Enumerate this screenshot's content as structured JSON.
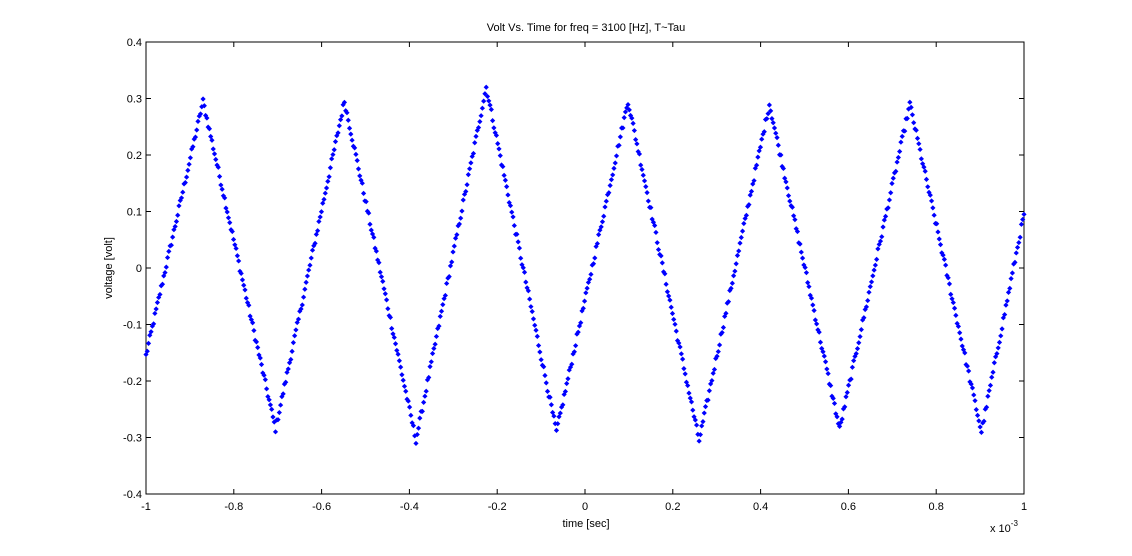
{
  "chart_data": {
    "type": "scatter",
    "title": "Volt Vs. Time for freq = 3100 [Hz], T~Tau",
    "xlabel": "time [sec]",
    "ylabel": "voltage [volt]",
    "x_multiplier_label": {
      "base": "x 10",
      "exponent": "-3"
    },
    "xlim": [
      -1,
      1
    ],
    "ylim": [
      -0.4,
      0.4
    ],
    "xticks": [
      -1,
      -0.8,
      -0.6,
      -0.4,
      -0.2,
      0,
      0.2,
      0.4,
      0.6,
      0.8,
      1
    ],
    "xtick_labels": [
      "-1",
      "-0.8",
      "-0.6",
      "-0.4",
      "-0.2",
      "0",
      "0.2",
      "0.4",
      "0.6",
      "0.8",
      "1"
    ],
    "yticks": [
      -0.4,
      -0.3,
      -0.2,
      -0.1,
      0,
      0.1,
      0.2,
      0.3,
      0.4
    ],
    "ytick_labels": [
      "-0.4",
      "-0.3",
      "-0.2",
      "-0.1",
      "0",
      "0.1",
      "0.2",
      "0.3",
      "0.4"
    ],
    "grid": false,
    "marker_color": "#0000ff",
    "marker": "dot",
    "series": [
      {
        "points_per_segment": 55,
        "vertices": [
          [
            -1.0,
            -0.155
          ],
          [
            -0.87,
            0.295
          ],
          [
            -0.705,
            -0.285
          ],
          [
            -0.548,
            0.295
          ],
          [
            -0.385,
            -0.305
          ],
          [
            -0.225,
            0.32
          ],
          [
            -0.065,
            -0.29
          ],
          [
            0.098,
            0.295
          ],
          [
            0.26,
            -0.305
          ],
          [
            0.42,
            0.29
          ],
          [
            0.58,
            -0.285
          ],
          [
            0.74,
            0.29
          ],
          [
            0.903,
            -0.29
          ],
          [
            1.0,
            0.095
          ]
        ]
      }
    ]
  }
}
